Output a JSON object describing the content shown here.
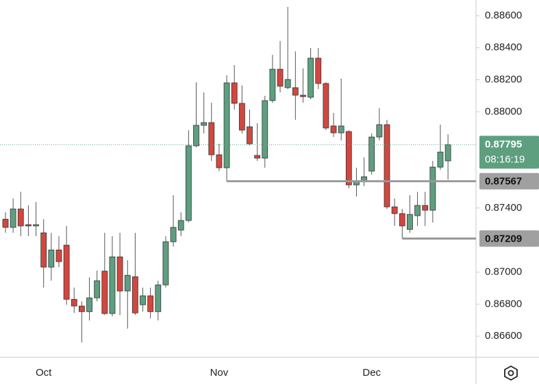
{
  "chart_data": {
    "type": "candlestick",
    "categories": [
      null,
      null,
      null,
      null,
      null,
      "Oct",
      null,
      null,
      null,
      null,
      null,
      null,
      null,
      null,
      null,
      null,
      null,
      null,
      null,
      null,
      null,
      null,
      null,
      null,
      null,
      null,
      null,
      null,
      "Nov",
      null,
      null,
      null,
      null,
      null,
      null,
      null,
      null,
      null,
      null,
      null,
      null,
      null,
      null,
      null,
      null,
      null,
      null,
      null,
      "Dec",
      null,
      null,
      null,
      null,
      null,
      null,
      null,
      null,
      null,
      null
    ],
    "open": [
      0.8733,
      0.87279,
      0.87394,
      0.87296,
      0.87288,
      0.87245,
      0.87031,
      0.87138,
      0.87168,
      0.8683,
      0.86788,
      0.86753,
      0.86839,
      0.87006,
      0.86741,
      0.87095,
      0.86882,
      0.86971,
      0.86796,
      0.86852,
      0.86753,
      0.8692,
      0.87189,
      0.87262,
      0.87322,
      0.87788,
      0.87916,
      0.87933,
      0.87732,
      0.87651,
      0.88181,
      0.88053,
      0.87907,
      0.87728,
      0.87711,
      0.8807,
      0.88266,
      0.88151,
      0.88151,
      0.88104,
      0.88091,
      0.88335,
      0.88177,
      0.87912,
      0.87869,
      0.87877,
      0.87544,
      0.87565,
      0.8763,
      0.87843,
      0.8792,
      0.87407,
      0.87365,
      0.87266,
      0.87352,
      0.87416,
      0.87386,
      0.87655,
      0.87694
    ],
    "high": [
      0.87373,
      0.87459,
      0.87501,
      0.87416,
      0.87437,
      0.8733,
      0.87245,
      0.87224,
      0.87288,
      0.86903,
      0.86817,
      0.86967,
      0.8701,
      0.87245,
      0.87224,
      0.87245,
      0.87074,
      0.87245,
      0.86903,
      0.86903,
      0.86946,
      0.87224,
      0.8748,
      0.87373,
      0.87886,
      0.88185,
      0.88121,
      0.88057,
      0.87801,
      0.88228,
      0.88292,
      0.88164,
      0.88014,
      0.87929,
      0.881,
      0.88356,
      0.88442,
      0.88655,
      0.88377,
      0.88271,
      0.88399,
      0.88399,
      0.88185,
      0.87993,
      0.88207,
      0.87886,
      0.87651,
      0.87715,
      0.87865,
      0.88023,
      0.8795,
      0.87459,
      0.87394,
      0.8748,
      0.87501,
      0.87501,
      0.87694,
      0.8792,
      0.8786
    ],
    "low": [
      0.87245,
      0.87245,
      0.87224,
      0.87224,
      0.87224,
      0.86903,
      0.86946,
      0.87031,
      0.86796,
      0.86745,
      0.86561,
      0.86698,
      0.86817,
      0.86732,
      0.86723,
      0.86732,
      0.86647,
      0.86732,
      0.86753,
      0.86711,
      0.86698,
      0.86903,
      0.87159,
      0.87224,
      0.87309,
      0.87779,
      0.87865,
      0.87694,
      0.8763,
      0.87567,
      0.88014,
      0.87865,
      0.87792,
      0.87694,
      0.87651,
      0.88057,
      0.88121,
      0.88142,
      0.8795,
      0.88057,
      0.88078,
      0.88142,
      0.87886,
      0.87843,
      0.87822,
      0.87523,
      0.87471,
      0.87536,
      0.87608,
      0.87822,
      0.87394,
      0.87288,
      0.87209,
      0.87245,
      0.87288,
      0.87288,
      0.87309,
      0.87638,
      0.87578
    ],
    "close": [
      0.87279,
      0.87394,
      0.87288,
      0.87288,
      0.87296,
      0.87031,
      0.87138,
      0.87065,
      0.8683,
      0.86788,
      0.86753,
      0.86839,
      0.86946,
      0.86741,
      0.87095,
      0.86882,
      0.8698,
      0.86745,
      0.86852,
      0.86753,
      0.8692,
      0.87189,
      0.87279,
      0.87322,
      0.87788,
      0.87916,
      0.87933,
      0.87732,
      0.87651,
      0.88181,
      0.88053,
      0.87886,
      0.87801,
      0.87711,
      0.8807,
      0.88266,
      0.8816,
      0.88202,
      0.88104,
      0.88095,
      0.88335,
      0.88177,
      0.87899,
      0.87869,
      0.87912,
      0.87544,
      0.87565,
      0.87595,
      0.87843,
      0.8792,
      0.87407,
      0.87365,
      0.87288,
      0.8736,
      0.87416,
      0.87386,
      0.87655,
      0.87749,
      0.87795
    ],
    "up_color": "#5e9f80",
    "down_color": "#d2473f",
    "ylim": [
      0.86468,
      0.88698
    ],
    "yticks": [
      {
        "value": 0.866,
        "label": "0.86600"
      },
      {
        "value": 0.868,
        "label": "0.86800"
      },
      {
        "value": 0.87,
        "label": "0.87000"
      },
      {
        "value": 0.874,
        "label": "0.87400"
      },
      {
        "value": 0.88,
        "label": "0.88000"
      },
      {
        "value": 0.882,
        "label": "0.88200"
      },
      {
        "value": 0.884,
        "label": "0.88400"
      },
      {
        "value": 0.886,
        "label": "0.88600"
      }
    ],
    "levels": [
      {
        "value": 0.87567,
        "label": "0.87567",
        "start": 29
      },
      {
        "value": 0.87209,
        "label": "0.87209",
        "start": 52
      }
    ],
    "last_price": {
      "value": 0.87795,
      "label": "0.87795",
      "countdown": "08:16:19"
    }
  }
}
